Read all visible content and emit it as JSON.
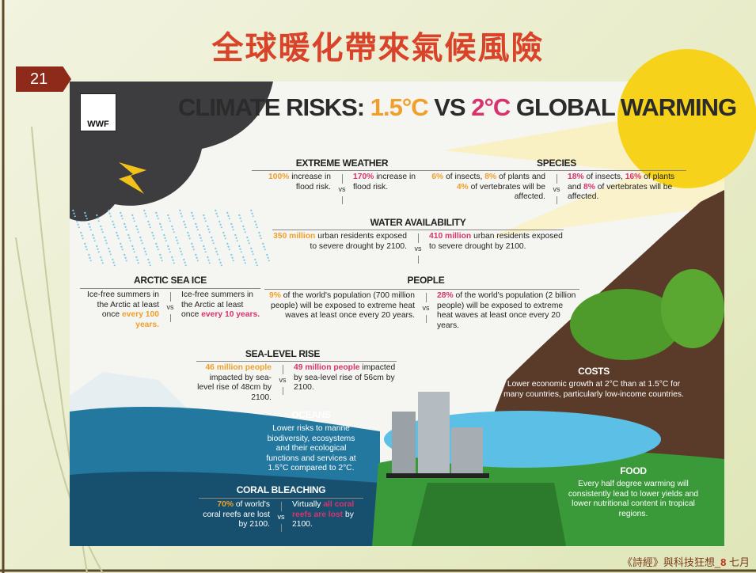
{
  "header": {
    "title": "全球暖化帶來氣候風險",
    "slide_number": "21"
  },
  "footer": {
    "parts": [
      {
        "text": "《詩經》與科技狂想_"
      },
      {
        "text": "8",
        "em": true
      },
      {
        "text": " 七月"
      }
    ]
  },
  "infographic": {
    "logo": "WWF",
    "heading": [
      {
        "text": "CLIMATE RISKS: "
      },
      {
        "text": "1.5°C",
        "side": "left"
      },
      {
        "text": " VS "
      },
      {
        "text": "2°C",
        "side": "right"
      },
      {
        "text": " GLOBAL WARMING"
      }
    ],
    "colors": {
      "left": "#f0a02a",
      "right": "#d8336e"
    },
    "sections": {
      "extreme_weather": {
        "title": "EXTREME WEATHER",
        "vs": "vs",
        "left": [
          {
            "text": "100%",
            "em": true
          },
          {
            "text": " increase in flood risk."
          }
        ],
        "right": [
          {
            "text": "170%",
            "em": true
          },
          {
            "text": " increase in flood risk."
          }
        ]
      },
      "species": {
        "title": "SPECIES",
        "vs": "vs",
        "left": [
          {
            "text": "6%",
            "em": true
          },
          {
            "text": " of insects, "
          },
          {
            "text": "8%",
            "em": true
          },
          {
            "text": " of plants and "
          },
          {
            "text": "4%",
            "em": true
          },
          {
            "text": " of vertebrates will be affected."
          }
        ],
        "right": [
          {
            "text": "18%",
            "em": true
          },
          {
            "text": " of insects, "
          },
          {
            "text": "16%",
            "em": true
          },
          {
            "text": " of plants and "
          },
          {
            "text": "8%",
            "em": true
          },
          {
            "text": " of vertebrates will be affected."
          }
        ]
      },
      "water": {
        "title": "WATER AVAILABILITY",
        "vs": "vs",
        "left": [
          {
            "text": "350 million",
            "em": true
          },
          {
            "text": " urban residents exposed to severe drought by 2100."
          }
        ],
        "right": [
          {
            "text": "410 million",
            "em": true
          },
          {
            "text": " urban residents exposed to severe drought by 2100."
          }
        ]
      },
      "arctic": {
        "title": "ARCTIC SEA ICE",
        "vs": "vs",
        "left": [
          {
            "text": "Ice-free summers in the Arctic at least once "
          },
          {
            "text": "every 100 years.",
            "em": true
          }
        ],
        "right": [
          {
            "text": "Ice-free summers in the Arctic at least once "
          },
          {
            "text": "every 10 years.",
            "em": true
          }
        ]
      },
      "people": {
        "title": "PEOPLE",
        "vs": "vs",
        "left": [
          {
            "text": "9%",
            "em": true
          },
          {
            "text": " of the world's population (700 million people) will be exposed to extreme heat waves at least once every 20 years."
          }
        ],
        "right": [
          {
            "text": "28%",
            "em": true
          },
          {
            "text": " of the world's population (2 billion people) will be exposed to extreme heat waves at least once every 20 years."
          }
        ]
      },
      "sea_level": {
        "title": "SEA-LEVEL RISE",
        "vs": "vs",
        "left": [
          {
            "text": "46 million people",
            "em": true
          },
          {
            "text": " impacted by sea-level rise of 48cm by 2100."
          }
        ],
        "right": [
          {
            "text": "49 million people",
            "em": true
          },
          {
            "text": " impacted by sea-level rise of 56cm by 2100."
          }
        ]
      },
      "coral": {
        "title": "CORAL BLEACHING",
        "vs": "vs",
        "left": [
          {
            "text": "70%",
            "em": true
          },
          {
            "text": " of world's coral reefs are lost by 2100."
          }
        ],
        "right": [
          {
            "text": "Virtually "
          },
          {
            "text": "all coral reefs are lost",
            "em": true
          },
          {
            "text": " by 2100."
          }
        ]
      },
      "oceans": {
        "title": "OCEANS",
        "text": "Lower risks to marine biodiversity, ecosystems and their ecological functions and services at 1.5°C compared to 2°C."
      },
      "costs": {
        "title": "COSTS",
        "text": "Lower economic growth at 2°C than at 1.5°C for many countries, particularly low-income countries."
      },
      "food": {
        "title": "FOOD",
        "text": "Every half degree warming will consistently lead to lower yields and lower nutritional content in tropical regions."
      }
    }
  }
}
